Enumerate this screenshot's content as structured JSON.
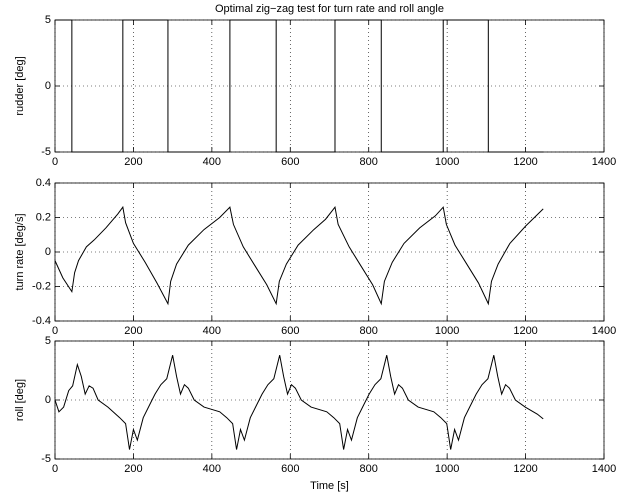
{
  "chart_data": [
    {
      "type": "line",
      "title": "Optimal zig−zag test for turn rate and roll angle",
      "ylabel": "rudder [deg]",
      "x": [
        0,
        43,
        43,
        173,
        173,
        288,
        288,
        446,
        446,
        564,
        564,
        714,
        714,
        832,
        832,
        990,
        990,
        1105,
        1105,
        1245
      ],
      "values": [
        5,
        5,
        -5,
        -5,
        5,
        5,
        -5,
        -5,
        5,
        5,
        -5,
        -5,
        5,
        5,
        -5,
        -5,
        5,
        5,
        -5,
        -5
      ],
      "color": "#000000",
      "xlim": [
        0,
        1400
      ],
      "xticks": [
        0,
        200,
        400,
        600,
        800,
        1000,
        1200,
        1400
      ],
      "ylim": [
        -5,
        5
      ],
      "yticks": [
        -5,
        0,
        5
      ],
      "grid": true
    },
    {
      "type": "line",
      "ylabel": "turn rate [deg/s]",
      "x": [
        0,
        20,
        43,
        50,
        60,
        80,
        100,
        130,
        160,
        173,
        180,
        200,
        230,
        260,
        288,
        295,
        310,
        340,
        380,
        420,
        446,
        455,
        480,
        510,
        540,
        564,
        572,
        590,
        620,
        660,
        690,
        714,
        722,
        750,
        780,
        810,
        832,
        840,
        860,
        890,
        930,
        970,
        990,
        998,
        1020,
        1050,
        1080,
        1105,
        1113,
        1130,
        1160,
        1200,
        1245
      ],
      "values": [
        -0.05,
        -0.15,
        -0.23,
        -0.12,
        -0.05,
        0.03,
        0.07,
        0.14,
        0.22,
        0.26,
        0.17,
        0.05,
        -0.06,
        -0.18,
        -0.3,
        -0.17,
        -0.07,
        0.04,
        0.13,
        0.2,
        0.26,
        0.16,
        0.03,
        -0.08,
        -0.19,
        -0.3,
        -0.17,
        -0.07,
        0.04,
        0.13,
        0.19,
        0.26,
        0.16,
        0.03,
        -0.08,
        -0.19,
        -0.3,
        -0.17,
        -0.06,
        0.05,
        0.14,
        0.21,
        0.26,
        0.16,
        0.04,
        -0.07,
        -0.18,
        -0.3,
        -0.17,
        -0.07,
        0.05,
        0.15,
        0.25
      ],
      "color": "#000000",
      "xlim": [
        0,
        1400
      ],
      "xticks": [
        0,
        200,
        400,
        600,
        800,
        1000,
        1200,
        1400
      ],
      "ylim": [
        -0.4,
        0.4
      ],
      "yticks": [
        -0.4,
        -0.2,
        0,
        0.2,
        0.4
      ],
      "grid": true
    },
    {
      "type": "line",
      "ylabel": "roll [deg]",
      "xlabel": "Time [s]",
      "x": [
        0,
        10,
        22,
        35,
        45,
        57,
        67,
        77,
        87,
        97,
        110,
        135,
        165,
        180,
        190,
        200,
        210,
        225,
        240,
        255,
        270,
        285,
        300,
        310,
        320,
        330,
        340,
        355,
        380,
        420,
        438,
        453,
        463,
        473,
        483,
        498,
        513,
        528,
        543,
        558,
        573,
        583,
        593,
        603,
        613,
        628,
        653,
        693,
        711,
        726,
        736,
        746,
        756,
        771,
        786,
        801,
        816,
        831,
        846,
        856,
        866,
        876,
        886,
        901,
        926,
        966,
        984,
        999,
        1009,
        1019,
        1029,
        1044,
        1059,
        1074,
        1089,
        1104,
        1119,
        1129,
        1139,
        1149,
        1159,
        1174,
        1199,
        1230,
        1245
      ],
      "values": [
        0,
        -1,
        -0.6,
        0.8,
        1.2,
        3,
        2,
        0.5,
        1.2,
        1,
        0,
        -0.6,
        -1.5,
        -2,
        -4.2,
        -2.5,
        -3.4,
        -1.5,
        -0.5,
        0.5,
        1.3,
        1.8,
        3.8,
        2,
        0.5,
        1.3,
        1,
        0,
        -0.6,
        -1.0,
        -1.5,
        -2,
        -4.2,
        -2.5,
        -3.4,
        -1.5,
        -0.5,
        0.5,
        1.3,
        1.8,
        3.8,
        2,
        0.5,
        1.3,
        1,
        0,
        -0.6,
        -1.0,
        -1.5,
        -2,
        -4.2,
        -2.5,
        -3.4,
        -1.5,
        -0.5,
        0.5,
        1.3,
        1.8,
        3.8,
        2,
        0.5,
        1.3,
        1,
        0,
        -0.6,
        -1.0,
        -1.5,
        -2,
        -4.2,
        -2.5,
        -3.4,
        -1.5,
        -0.5,
        0.5,
        1.3,
        1.8,
        3.8,
        2,
        0.5,
        1.3,
        1,
        0,
        -0.6,
        -1.2,
        -1.6
      ],
      "color": "#000000",
      "xlim": [
        0,
        1400
      ],
      "xticks": [
        0,
        200,
        400,
        600,
        800,
        1000,
        1200,
        1400
      ],
      "ylim": [
        -5,
        5
      ],
      "yticks": [
        -5,
        0,
        5
      ],
      "grid": true
    }
  ]
}
